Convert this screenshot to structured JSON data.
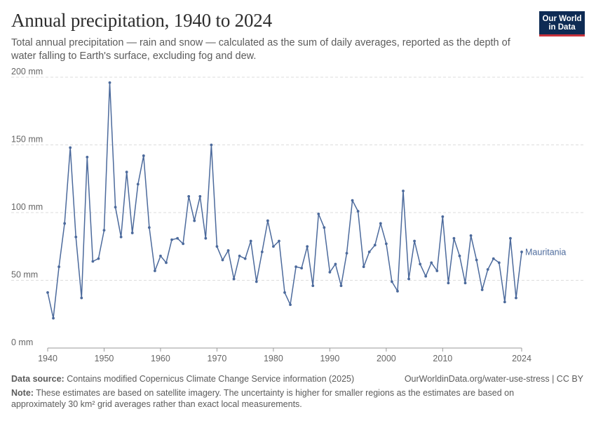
{
  "header": {
    "title": "Annual precipitation, 1940 to 2024",
    "subtitle": "Total annual precipitation — rain and snow — calculated as the sum of daily averages, reported as the depth of water falling to Earth's surface, excluding fog and dew."
  },
  "logo": {
    "line1": "Our World",
    "line2": "in Data"
  },
  "footer": {
    "source_label": "Data source:",
    "source_text": "Contains modified Copernicus Climate Change Service information (2025)",
    "url_text": "OurWorldinData.org/water-use-stress | CC BY",
    "note_label": "Note:",
    "note_text": "These estimates are based on satellite imagery. The uncertainty is higher for smaller regions as the estimates are based on approximately 30 km² grid averages rather than exact local measurements."
  },
  "colors": {
    "series": "#4c6a9c",
    "grid": "#dddddd",
    "axis": "#666666"
  },
  "chart_data": {
    "type": "line",
    "title": "Annual precipitation, 1940 to 2024",
    "xlim": [
      1940,
      2024
    ],
    "ylim": [
      0,
      200
    ],
    "x_ticks": [
      {
        "value": 1940,
        "label": "1940"
      },
      {
        "value": 1950,
        "label": "1950"
      },
      {
        "value": 1960,
        "label": "1960"
      },
      {
        "value": 1970,
        "label": "1970"
      },
      {
        "value": 1980,
        "label": "1980"
      },
      {
        "value": 1990,
        "label": "1990"
      },
      {
        "value": 2000,
        "label": "2000"
      },
      {
        "value": 2010,
        "label": "2010"
      },
      {
        "value": 2024,
        "label": "2024"
      }
    ],
    "y_ticks": [
      {
        "value": 0,
        "label": "0 mm"
      },
      {
        "value": 50,
        "label": "50 mm"
      },
      {
        "value": 100,
        "label": "100 mm"
      },
      {
        "value": 150,
        "label": "150 mm"
      },
      {
        "value": 200,
        "label": "200 mm"
      }
    ],
    "grid": true,
    "series": [
      {
        "name": "Mauritania",
        "x": [
          1940,
          1941,
          1942,
          1943,
          1944,
          1945,
          1946,
          1947,
          1948,
          1949,
          1950,
          1951,
          1952,
          1953,
          1954,
          1955,
          1956,
          1957,
          1958,
          1959,
          1960,
          1961,
          1962,
          1963,
          1964,
          1965,
          1966,
          1967,
          1968,
          1969,
          1970,
          1971,
          1972,
          1973,
          1974,
          1975,
          1976,
          1977,
          1978,
          1979,
          1980,
          1981,
          1982,
          1983,
          1984,
          1985,
          1986,
          1987,
          1988,
          1989,
          1990,
          1991,
          1992,
          1993,
          1994,
          1995,
          1996,
          1997,
          1998,
          1999,
          2000,
          2001,
          2002,
          2003,
          2004,
          2005,
          2006,
          2007,
          2008,
          2009,
          2010,
          2011,
          2012,
          2013,
          2014,
          2015,
          2016,
          2017,
          2018,
          2019,
          2020,
          2021,
          2022,
          2023,
          2024
        ],
        "values": [
          41,
          22,
          60,
          92,
          148,
          82,
          37,
          141,
          64,
          66,
          87,
          196,
          104,
          82,
          130,
          85,
          121,
          142,
          89,
          57,
          68,
          63,
          80,
          81,
          77,
          112,
          94,
          112,
          81,
          150,
          75,
          65,
          72,
          51,
          68,
          66,
          79,
          49,
          71,
          94,
          75,
          79,
          41,
          32,
          60,
          59,
          75,
          46,
          99,
          89,
          56,
          62,
          46,
          70,
          109,
          101,
          60,
          71,
          76,
          92,
          77,
          49,
          42,
          116,
          51,
          79,
          62,
          53,
          63,
          57,
          97,
          48,
          81,
          68,
          48,
          83,
          65,
          43,
          58,
          66,
          63,
          34,
          81,
          37,
          71
        ]
      }
    ]
  }
}
